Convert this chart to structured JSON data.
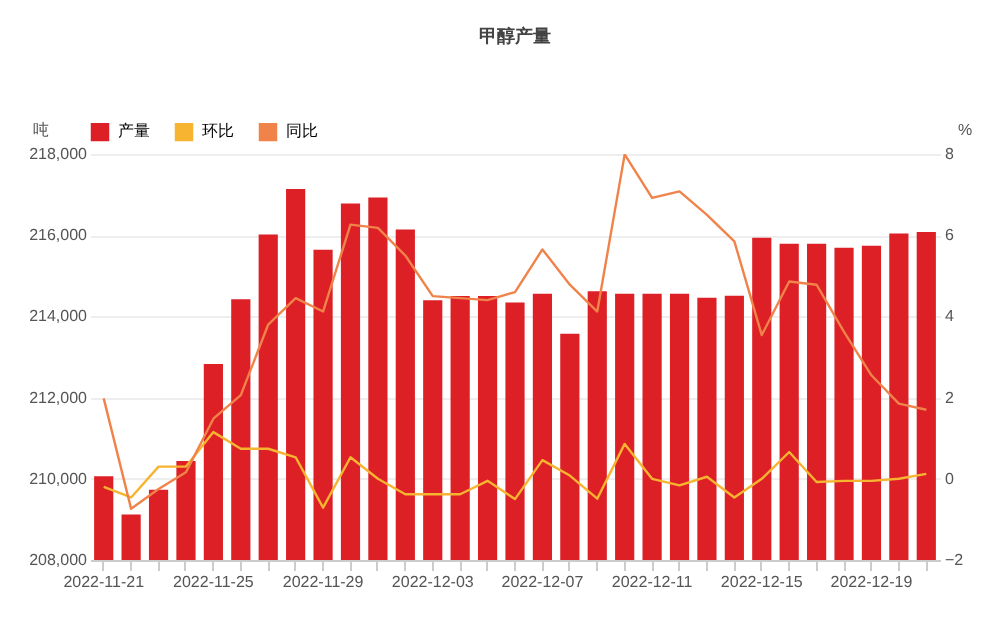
{
  "chart_data": {
    "type": "bar",
    "title": "甲醇产量",
    "ylabel": "吨",
    "y2label": "%",
    "categories": [
      "2022-11-21",
      null,
      null,
      null,
      "2022-11-25",
      null,
      null,
      null,
      "2022-11-29",
      null,
      null,
      null,
      "2022-12-03",
      null,
      null,
      null,
      "2022-12-07",
      null,
      null,
      null,
      "2022-12-11",
      null,
      null,
      null,
      "2022-12-15",
      null,
      null,
      null,
      "2022-12-19",
      null,
      null
    ],
    "series": [
      {
        "name": "产量",
        "color": "#dd1f26",
        "values": [
          210060,
          209120,
          209730,
          210440,
          212830,
          214420,
          216020,
          217140,
          215640,
          216780,
          216930,
          216140,
          214400,
          214500,
          214500,
          214340,
          214560,
          213570,
          214620,
          214560,
          214560,
          214560,
          214460,
          214510,
          215940,
          215790,
          215790,
          215690,
          215740,
          216040,
          216080
        ]
      },
      {
        "name": "环比",
        "type": "line",
        "axis": "y2",
        "color": "#f6b431",
        "values": [
          -0.2,
          -0.46,
          0.3,
          0.3,
          1.15,
          0.74,
          0.74,
          0.53,
          -0.71,
          0.53,
          0,
          -0.38,
          -0.38,
          -0.38,
          -0.05,
          -0.5,
          0.46,
          0.08,
          -0.49,
          0.86,
          0,
          -0.16,
          0.05,
          -0.46,
          0,
          0.66,
          -0.08,
          -0.05,
          -0.05,
          0,
          0.12
        ]
      },
      {
        "name": "同比",
        "type": "line",
        "axis": "y2",
        "color": "#f0834a",
        "values": [
          1.98,
          -0.74,
          -0.25,
          0.16,
          1.48,
          2.06,
          3.8,
          4.45,
          4.12,
          6.26,
          6.18,
          5.5,
          4.5,
          4.45,
          4.4,
          4.6,
          5.65,
          4.78,
          4.12,
          7.99,
          6.92,
          7.08,
          6.5,
          5.85,
          3.54,
          4.86,
          4.78,
          3.62,
          2.55,
          1.85,
          1.7
        ]
      }
    ],
    "ylim": [
      208000,
      218000
    ],
    "yticks": [
      {
        "value": 208000,
        "label": "208,000"
      },
      {
        "value": 210000,
        "label": "210,000"
      },
      {
        "value": 212000,
        "label": "212,000"
      },
      {
        "value": 214000,
        "label": "214,000"
      },
      {
        "value": 216000,
        "label": "216,000"
      },
      {
        "value": 218000,
        "label": "218,000"
      }
    ],
    "y2lim": [
      -2,
      8
    ],
    "y2ticks": [
      -2,
      0,
      2,
      4,
      6,
      8
    ],
    "grid": "y",
    "legend": "top"
  }
}
